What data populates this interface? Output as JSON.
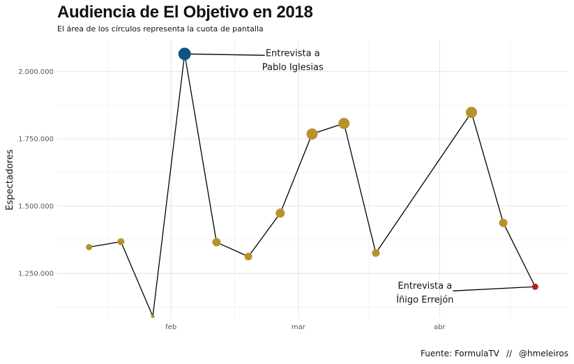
{
  "chart_data": {
    "type": "scatter",
    "title": "Audiencia de El Objetivo en 2018",
    "subtitle": "El área de los círculos representa la cuota de pantalla",
    "xlabel": "",
    "ylabel": "Espectadores",
    "x_ticks": [
      {
        "label": "feb",
        "date": "2018-02-01"
      },
      {
        "label": "mar",
        "date": "2018-03-01"
      },
      {
        "label": "abr",
        "date": "2018-04-01"
      }
    ],
    "xlim": [
      "2018-01-07",
      "2018-04-29"
    ],
    "y_ticks": [
      {
        "value": 1250000,
        "label": "1.250.000"
      },
      {
        "value": 1500000,
        "label": "1.500.000"
      },
      {
        "value": 1750000,
        "label": "1.750.000"
      },
      {
        "value": 2000000,
        "label": "2.000.000"
      }
    ],
    "ylim": [
      1085000,
      2115000
    ],
    "grid": true,
    "points": [
      {
        "date": "2018-01-14",
        "value": 1348000,
        "size": 4.5,
        "color": "#B8912A"
      },
      {
        "date": "2018-01-21",
        "value": 1368000,
        "size": 5.0,
        "color": "#B8912A"
      },
      {
        "date": "2018-01-28",
        "value": 1091000,
        "size": 2.5,
        "color": "#B8912A"
      },
      {
        "date": "2018-02-04",
        "value": 2065000,
        "size": 9.0,
        "color": "#0F5384"
      },
      {
        "date": "2018-02-11",
        "value": 1366000,
        "size": 6.0,
        "color": "#B8912A"
      },
      {
        "date": "2018-02-18",
        "value": 1313000,
        "size": 5.5,
        "color": "#B8912A"
      },
      {
        "date": "2018-02-25",
        "value": 1474000,
        "size": 6.5,
        "color": "#B8912A"
      },
      {
        "date": "2018-03-04",
        "value": 1768000,
        "size": 8.0,
        "color": "#B8912A"
      },
      {
        "date": "2018-03-11",
        "value": 1807000,
        "size": 8.0,
        "color": "#B8912A"
      },
      {
        "date": "2018-03-18",
        "value": 1326000,
        "size": 5.5,
        "color": "#B8912A"
      },
      {
        "date": "2018-04-08",
        "value": 1848000,
        "size": 8.0,
        "color": "#B8912A"
      },
      {
        "date": "2018-04-15",
        "value": 1438000,
        "size": 6.0,
        "color": "#B8912A"
      },
      {
        "date": "2018-04-22",
        "value": 1201000,
        "size": 4.5,
        "color": "#B22222"
      }
    ],
    "annotations": [
      {
        "lines": [
          "Entrevista a",
          "Pablo Iglesias"
        ],
        "point_index": 3,
        "anchor": "right"
      },
      {
        "lines": [
          "Entrevista a",
          "Íñigo Errejón"
        ],
        "point_index": 12,
        "anchor": "left"
      }
    ],
    "colors": {
      "default": "#B8912A",
      "highlight_blue": "#0F5384",
      "highlight_red": "#B22222"
    }
  },
  "caption": {
    "source": "Fuente: FormulaTV",
    "separator": "//",
    "author": "@hmeleiros"
  }
}
